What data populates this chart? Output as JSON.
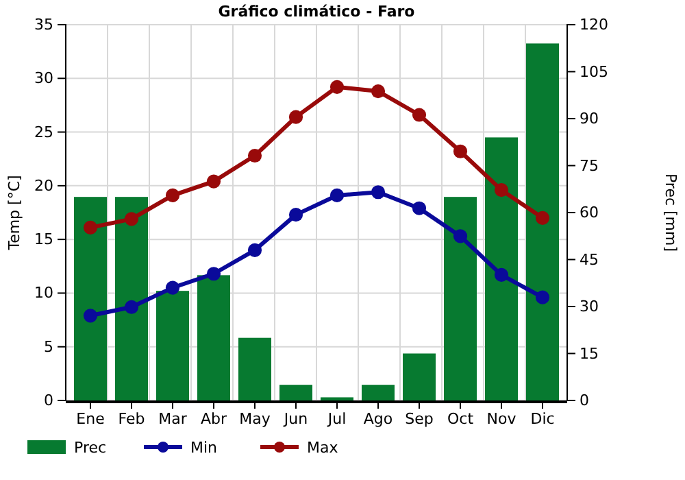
{
  "chart_data": {
    "type": "bar",
    "title": "Gráfico climático - Faro",
    "ylabel": "Temp [°C]",
    "y2label": "Prec [mm]",
    "categories": [
      "Ene",
      "Feb",
      "Mar",
      "Abr",
      "May",
      "Jun",
      "Jul",
      "Ago",
      "Sep",
      "Oct",
      "Nov",
      "Dic"
    ],
    "series": [
      {
        "name": "Prec",
        "axis": "y2",
        "color": "#077a30",
        "values": [
          65,
          65,
          35,
          40,
          20,
          5,
          1,
          5,
          15,
          65,
          84,
          114
        ]
      },
      {
        "name": "Min",
        "type": "line",
        "color": "#0a0a9a",
        "values": [
          7.9,
          8.7,
          10.5,
          11.8,
          14,
          17.3,
          19.1,
          19.4,
          17.9,
          15.3,
          11.7,
          9.6
        ]
      },
      {
        "name": "Max",
        "type": "line",
        "color": "#990a0a",
        "values": [
          16.1,
          16.9,
          19.1,
          20.4,
          22.8,
          26.4,
          29.2,
          28.8,
          26.6,
          23.2,
          19.6,
          17.0
        ]
      }
    ],
    "ylim": [
      0,
      35
    ],
    "yticks": [
      0,
      5,
      10,
      15,
      20,
      25,
      30,
      35
    ],
    "y2lim": [
      0,
      120
    ],
    "y2ticks": [
      0,
      15,
      30,
      45,
      60,
      75,
      90,
      105,
      120
    ],
    "grid": true,
    "legend": "bottom",
    "marker": "circle",
    "line_style": "solid"
  }
}
